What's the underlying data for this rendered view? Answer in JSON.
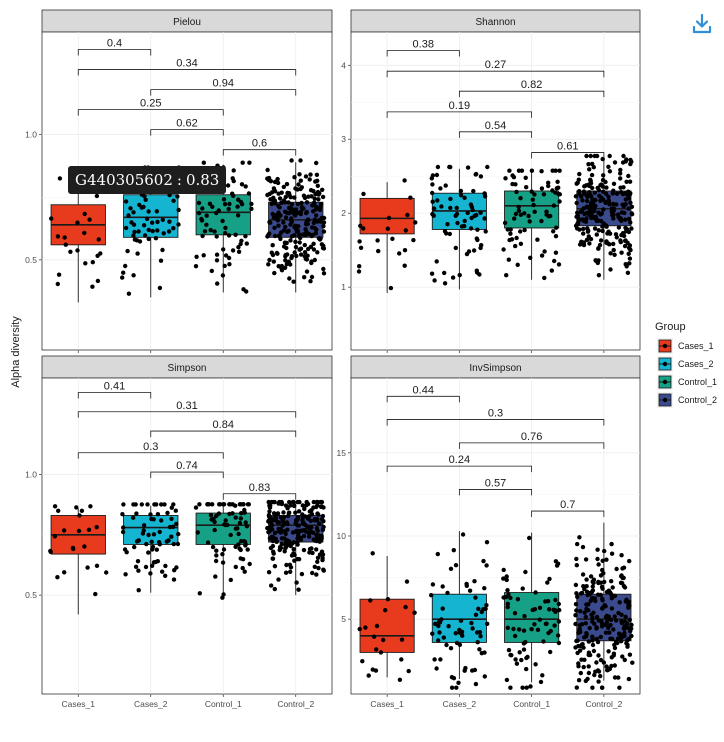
{
  "ylabel": "Alpha diversity",
  "legend": {
    "title": "Group",
    "items": [
      {
        "label": "Cases_1",
        "color": "#e83b1e"
      },
      {
        "label": "Cases_2",
        "color": "#15b5d1"
      },
      {
        "label": "Control_1",
        "color": "#16a085"
      },
      {
        "label": "Control_2",
        "color": "#3b4a8c"
      }
    ]
  },
  "tooltip": {
    "sample": "G440305602",
    "value": "0.83"
  },
  "download_icon": "download-icon",
  "chart_data": [
    {
      "type": "box",
      "title": "Pielou",
      "categories": [
        "Cases_1",
        "Cases_2",
        "Control_1",
        "Control_2"
      ],
      "ylim": [
        0.14,
        1.41
      ],
      "yticks": [
        0.5,
        1.0
      ],
      "yticklabels": [
        "0.5",
        "1.0"
      ],
      "grid": true,
      "boxes": [
        {
          "q1": 0.56,
          "median": 0.64,
          "q3": 0.72,
          "whisker_low": 0.33,
          "whisker_high": 0.83
        },
        {
          "q1": 0.59,
          "median": 0.67,
          "q3": 0.76,
          "whisker_low": 0.35,
          "whisker_high": 0.86
        },
        {
          "q1": 0.6,
          "median": 0.69,
          "q3": 0.76,
          "whisker_low": 0.37,
          "whisker_high": 0.88
        },
        {
          "q1": 0.59,
          "median": 0.66,
          "q3": 0.73,
          "whisker_low": 0.37,
          "whisker_high": 0.89
        }
      ],
      "point_counts": [
        22,
        70,
        75,
        240
      ],
      "comparisons": [
        {
          "from": 0,
          "to": 1,
          "y": 1.34,
          "label": "0.4"
        },
        {
          "from": 0,
          "to": 3,
          "y": 1.26,
          "label": "0.34"
        },
        {
          "from": 1,
          "to": 3,
          "y": 1.18,
          "label": "0.94"
        },
        {
          "from": 0,
          "to": 2,
          "y": 1.1,
          "label": "0.25"
        },
        {
          "from": 1,
          "to": 2,
          "y": 1.02,
          "label": "0.62"
        },
        {
          "from": 2,
          "to": 3,
          "y": 0.94,
          "label": "0.6"
        }
      ]
    },
    {
      "type": "box",
      "title": "Shannon",
      "categories": [
        "Cases_1",
        "Cases_2",
        "Control_1",
        "Control_2"
      ],
      "ylim": [
        0.15,
        4.45
      ],
      "yticks": [
        1,
        2,
        3,
        4
      ],
      "yticklabels": [
        "1",
        "2",
        "3",
        "4"
      ],
      "grid": true,
      "boxes": [
        {
          "q1": 1.72,
          "median": 1.93,
          "q3": 2.2,
          "whisker_low": 0.92,
          "whisker_high": 2.42
        },
        {
          "q1": 1.78,
          "median": 2.03,
          "q3": 2.27,
          "whisker_low": 0.97,
          "whisker_high": 2.6
        },
        {
          "q1": 1.8,
          "median": 2.1,
          "q3": 2.3,
          "whisker_low": 1.1,
          "whisker_high": 2.55
        },
        {
          "q1": 1.83,
          "median": 2.06,
          "q3": 2.3,
          "whisker_low": 1.1,
          "whisker_high": 2.75
        }
      ],
      "point_counts": [
        22,
        70,
        75,
        240
      ],
      "comparisons": [
        {
          "from": 0,
          "to": 1,
          "y": 4.2,
          "label": "0.38"
        },
        {
          "from": 0,
          "to": 3,
          "y": 3.92,
          "label": "0.27"
        },
        {
          "from": 1,
          "to": 3,
          "y": 3.65,
          "label": "0.82"
        },
        {
          "from": 0,
          "to": 2,
          "y": 3.37,
          "label": "0.19"
        },
        {
          "from": 1,
          "to": 2,
          "y": 3.1,
          "label": "0.54"
        },
        {
          "from": 2,
          "to": 3,
          "y": 2.82,
          "label": "0.61"
        }
      ]
    },
    {
      "type": "box",
      "title": "Simpson",
      "categories": [
        "Cases_1",
        "Cases_2",
        "Control_1",
        "Control_2"
      ],
      "ylim": [
        0.09,
        1.4
      ],
      "yticks": [
        0.5,
        1.0
      ],
      "yticklabels": [
        "0.5",
        "1.0"
      ],
      "grid": true,
      "boxes": [
        {
          "q1": 0.67,
          "median": 0.75,
          "q3": 0.83,
          "whisker_low": 0.42,
          "whisker_high": 0.86
        },
        {
          "q1": 0.71,
          "median": 0.78,
          "q3": 0.83,
          "whisker_low": 0.51,
          "whisker_high": 0.87
        },
        {
          "q1": 0.71,
          "median": 0.79,
          "q3": 0.84,
          "whisker_low": 0.5,
          "whisker_high": 0.87
        },
        {
          "q1": 0.72,
          "median": 0.79,
          "q3": 0.83,
          "whisker_low": 0.5,
          "whisker_high": 0.88
        }
      ],
      "point_counts": [
        22,
        70,
        75,
        240
      ],
      "comparisons": [
        {
          "from": 0,
          "to": 1,
          "y": 1.34,
          "label": "0.41"
        },
        {
          "from": 0,
          "to": 3,
          "y": 1.26,
          "label": "0.31"
        },
        {
          "from": 1,
          "to": 3,
          "y": 1.18,
          "label": "0.84"
        },
        {
          "from": 0,
          "to": 2,
          "y": 1.09,
          "label": "0.3"
        },
        {
          "from": 1,
          "to": 2,
          "y": 1.01,
          "label": "0.74"
        },
        {
          "from": 2,
          "to": 3,
          "y": 0.92,
          "label": "0.83"
        }
      ]
    },
    {
      "type": "box",
      "title": "InvSimpson",
      "categories": [
        "Cases_1",
        "Cases_2",
        "Control_1",
        "Control_2"
      ],
      "ylim": [
        0.5,
        19.5
      ],
      "yticks": [
        5,
        10,
        15
      ],
      "yticklabels": [
        "5",
        "10",
        "15"
      ],
      "grid": true,
      "boxes": [
        {
          "q1": 3.0,
          "median": 4.0,
          "q3": 6.2,
          "whisker_low": 1.5,
          "whisker_high": 8.8
        },
        {
          "q1": 3.6,
          "median": 5.0,
          "q3": 6.5,
          "whisker_low": 1.4,
          "whisker_high": 10.3
        },
        {
          "q1": 3.6,
          "median": 5.0,
          "q3": 6.6,
          "whisker_low": 1.2,
          "whisker_high": 10.2
        },
        {
          "q1": 3.7,
          "median": 5.0,
          "q3": 6.5,
          "whisker_low": 1.3,
          "whisker_high": 10.8
        }
      ],
      "point_counts": [
        22,
        70,
        75,
        240
      ],
      "comparisons": [
        {
          "from": 0,
          "to": 1,
          "y": 18.4,
          "label": "0.44"
        },
        {
          "from": 0,
          "to": 3,
          "y": 17.0,
          "label": "0.3"
        },
        {
          "from": 1,
          "to": 3,
          "y": 15.6,
          "label": "0.76"
        },
        {
          "from": 0,
          "to": 2,
          "y": 14.2,
          "label": "0.24"
        },
        {
          "from": 1,
          "to": 2,
          "y": 12.8,
          "label": "0.57"
        },
        {
          "from": 2,
          "to": 3,
          "y": 11.5,
          "label": "0.7"
        }
      ]
    }
  ]
}
